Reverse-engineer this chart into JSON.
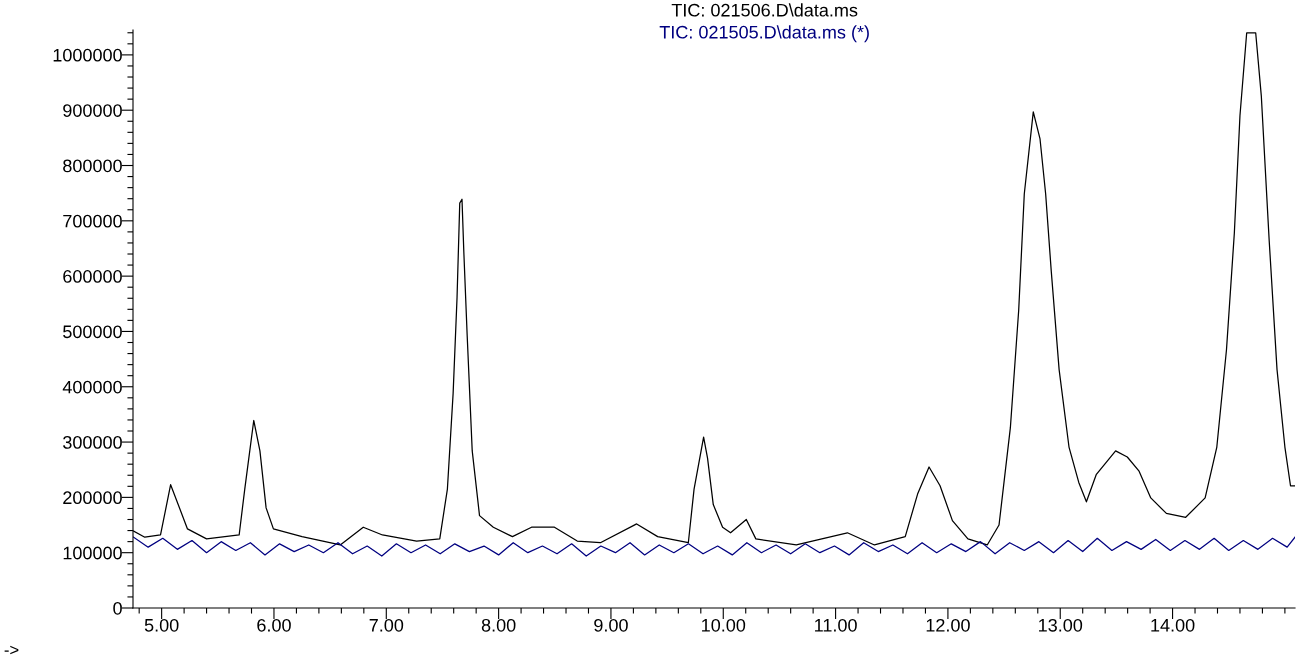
{
  "chart_data": {
    "type": "line",
    "legend": "top",
    "grid": false,
    "marker": "none",
    "line_style": "solid",
    "annotations": [
      "->"
    ],
    "xlim": [
      4.745,
      15.09
    ],
    "ylim": [
      0,
      1045000
    ],
    "xticks": [
      {
        "value": 4.8,
        "label": null
      },
      {
        "value": 5,
        "label": "5.00"
      },
      {
        "value": 5.2,
        "label": null
      },
      {
        "value": 5.4,
        "label": null
      },
      {
        "value": 5.6,
        "label": null
      },
      {
        "value": 5.8,
        "label": null
      },
      {
        "value": 6,
        "label": "6.00"
      },
      {
        "value": 6.2,
        "label": null
      },
      {
        "value": 6.4,
        "label": null
      },
      {
        "value": 6.6,
        "label": null
      },
      {
        "value": 6.8,
        "label": null
      },
      {
        "value": 7,
        "label": "7.00"
      },
      {
        "value": 7.2,
        "label": null
      },
      {
        "value": 7.4,
        "label": null
      },
      {
        "value": 7.6,
        "label": null
      },
      {
        "value": 7.8,
        "label": null
      },
      {
        "value": 8,
        "label": "8.00"
      },
      {
        "value": 8.2,
        "label": null
      },
      {
        "value": 8.4,
        "label": null
      },
      {
        "value": 8.6,
        "label": null
      },
      {
        "value": 8.8,
        "label": null
      },
      {
        "value": 9,
        "label": "9.00"
      },
      {
        "value": 9.2,
        "label": null
      },
      {
        "value": 9.4,
        "label": null
      },
      {
        "value": 9.6,
        "label": null
      },
      {
        "value": 9.8,
        "label": null
      },
      {
        "value": 10,
        "label": "10.00"
      },
      {
        "value": 10.2,
        "label": null
      },
      {
        "value": 10.4,
        "label": null
      },
      {
        "value": 10.6,
        "label": null
      },
      {
        "value": 10.8,
        "label": null
      },
      {
        "value": 11,
        "label": "11.00"
      },
      {
        "value": 11.2,
        "label": null
      },
      {
        "value": 11.4,
        "label": null
      },
      {
        "value": 11.6,
        "label": null
      },
      {
        "value": 11.8,
        "label": null
      },
      {
        "value": 12,
        "label": "12.00"
      },
      {
        "value": 12.2,
        "label": null
      },
      {
        "value": 12.4,
        "label": null
      },
      {
        "value": 12.6,
        "label": null
      },
      {
        "value": 12.8,
        "label": null
      },
      {
        "value": 13,
        "label": "13.00"
      },
      {
        "value": 13.2,
        "label": null
      },
      {
        "value": 13.4,
        "label": null
      },
      {
        "value": 13.6,
        "label": null
      },
      {
        "value": 13.8,
        "label": null
      },
      {
        "value": 14,
        "label": "14.00"
      },
      {
        "value": 14.2,
        "label": null
      },
      {
        "value": 14.4,
        "label": null
      },
      {
        "value": 14.6,
        "label": null
      },
      {
        "value": 14.8,
        "label": null
      },
      {
        "value": 15,
        "label": null
      }
    ],
    "yticks": [
      0,
      {
        "value": 20000,
        "label": null
      },
      {
        "value": 40000,
        "label": null
      },
      {
        "value": 60000,
        "label": null
      },
      {
        "value": 80000,
        "label": null
      },
      100000,
      {
        "value": 120000,
        "label": null
      },
      {
        "value": 140000,
        "label": null
      },
      {
        "value": 160000,
        "label": null
      },
      {
        "value": 180000,
        "label": null
      },
      200000,
      {
        "value": 220000,
        "label": null
      },
      {
        "value": 240000,
        "label": null
      },
      {
        "value": 260000,
        "label": null
      },
      {
        "value": 280000,
        "label": null
      },
      300000,
      {
        "value": 320000,
        "label": null
      },
      {
        "value": 340000,
        "label": null
      },
      {
        "value": 360000,
        "label": null
      },
      {
        "value": 380000,
        "label": null
      },
      400000,
      {
        "value": 420000,
        "label": null
      },
      {
        "value": 440000,
        "label": null
      },
      {
        "value": 460000,
        "label": null
      },
      {
        "value": 480000,
        "label": null
      },
      500000,
      {
        "value": 520000,
        "label": null
      },
      {
        "value": 540000,
        "label": null
      },
      {
        "value": 560000,
        "label": null
      },
      {
        "value": 580000,
        "label": null
      },
      600000,
      {
        "value": 620000,
        "label": null
      },
      {
        "value": 640000,
        "label": null
      },
      {
        "value": 660000,
        "label": null
      },
      {
        "value": 680000,
        "label": null
      },
      700000,
      {
        "value": 720000,
        "label": null
      },
      {
        "value": 740000,
        "label": null
      },
      {
        "value": 760000,
        "label": null
      },
      {
        "value": 780000,
        "label": null
      },
      800000,
      {
        "value": 820000,
        "label": null
      },
      {
        "value": 840000,
        "label": null
      },
      {
        "value": 860000,
        "label": null
      },
      {
        "value": 880000,
        "label": null
      },
      900000,
      {
        "value": 920000,
        "label": null
      },
      {
        "value": 940000,
        "label": null
      },
      {
        "value": 960000,
        "label": null
      },
      {
        "value": 980000,
        "label": null
      },
      1000000,
      {
        "value": 1020000,
        "label": null
      },
      {
        "value": 1040000,
        "label": null
      }
    ],
    "series": [
      {
        "name": "TIC: 021506.D\\data.ms",
        "color": "#000000",
        "x": [
          4.75,
          4.85,
          4.99,
          5.08,
          5.23,
          5.4,
          5.69,
          5.74,
          5.82,
          5.875,
          5.93,
          5.995,
          6.25,
          6.59,
          6.795,
          6.966,
          7.27,
          7.476,
          7.544,
          7.595,
          7.63,
          7.654,
          7.674,
          7.69,
          7.72,
          7.765,
          7.83,
          7.953,
          8.123,
          8.293,
          8.497,
          8.7,
          8.906,
          9.229,
          9.416,
          9.689,
          9.74,
          9.825,
          9.86,
          9.911,
          9.994,
          10.065,
          10.205,
          10.29,
          10.65,
          11.105,
          11.346,
          11.62,
          11.73,
          11.832,
          11.93,
          12.04,
          12.178,
          12.35,
          12.455,
          12.556,
          12.63,
          12.68,
          12.76,
          12.82,
          12.87,
          12.92,
          12.99,
          13.078,
          13.165,
          13.233,
          13.32,
          13.493,
          13.597,
          13.7,
          13.806,
          13.945,
          14.117,
          14.29,
          14.394,
          14.48,
          14.55,
          14.6,
          14.66,
          14.74,
          14.79,
          14.86,
          14.93,
          15.0,
          15.05,
          15.09
        ],
        "values": [
          139000,
          128000,
          132000,
          223000,
          143000,
          125000,
          132000,
          215000,
          339000,
          284000,
          181000,
          143000,
          129000,
          114000,
          146000,
          132000,
          121000,
          125000,
          215000,
          388000,
          562000,
          732000,
          739000,
          645000,
          493000,
          284000,
          167000,
          146000,
          129000,
          146000,
          146000,
          121000,
          118000,
          152000,
          129000,
          118000,
          215000,
          309000,
          271000,
          187000,
          146000,
          136000,
          160000,
          125000,
          114000,
          136000,
          114000,
          129000,
          206000,
          255000,
          221000,
          158000,
          125000,
          114000,
          150000,
          326000,
          538000,
          749000,
          897000,
          848000,
          749000,
          609000,
          431000,
          291000,
          227000,
          192000,
          241000,
          284000,
          273000,
          248000,
          199000,
          171000,
          164000,
          199000,
          291000,
          467000,
          678000,
          890000,
          1040000,
          1040000,
          926000,
          665000,
          431000,
          291000,
          221000,
          221000
        ]
      },
      {
        "name": "TIC: 021505.D\\data.ms (*)",
        "color": "#000080",
        "x": [
          4.75,
          4.88,
          5.01,
          5.14,
          5.27,
          5.4,
          5.53,
          5.66,
          5.79,
          5.92,
          6.05,
          6.18,
          6.31,
          6.44,
          6.57,
          6.7,
          6.83,
          6.96,
          7.09,
          7.22,
          7.35,
          7.48,
          7.61,
          7.74,
          7.87,
          8.0,
          8.13,
          8.26,
          8.39,
          8.52,
          8.65,
          8.78,
          8.91,
          9.04,
          9.17,
          9.3,
          9.43,
          9.56,
          9.69,
          9.82,
          9.95,
          10.08,
          10.21,
          10.34,
          10.47,
          10.6,
          10.73,
          10.86,
          10.99,
          11.12,
          11.25,
          11.38,
          11.51,
          11.64,
          11.77,
          11.9,
          12.03,
          12.16,
          12.29,
          12.42,
          12.55,
          12.68,
          12.81,
          12.94,
          13.07,
          13.2,
          13.33,
          13.46,
          13.59,
          13.72,
          13.85,
          13.98,
          14.11,
          14.24,
          14.37,
          14.5,
          14.63,
          14.76,
          14.89,
          15.02,
          15.09
        ],
        "values": [
          128000,
          110000,
          126000,
          106000,
          122000,
          100000,
          120000,
          104000,
          118000,
          96000,
          116000,
          102000,
          114000,
          100000,
          118000,
          98000,
          112000,
          94000,
          116000,
          100000,
          114000,
          98000,
          116000,
          102000,
          112000,
          96000,
          118000,
          100000,
          112000,
          98000,
          116000,
          94000,
          112000,
          100000,
          118000,
          96000,
          114000,
          100000,
          116000,
          98000,
          112000,
          96000,
          118000,
          100000,
          114000,
          98000,
          116000,
          100000,
          112000,
          96000,
          118000,
          102000,
          114000,
          98000,
          118000,
          100000,
          116000,
          102000,
          120000,
          98000,
          118000,
          104000,
          120000,
          100000,
          122000,
          102000,
          126000,
          104000,
          120000,
          106000,
          124000,
          104000,
          122000,
          106000,
          126000,
          104000,
          122000,
          106000,
          126000,
          110000,
          128000
        ]
      }
    ]
  }
}
